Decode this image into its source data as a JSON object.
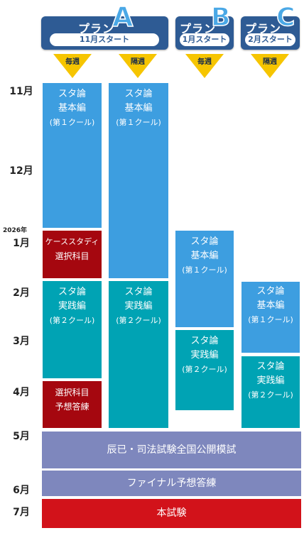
{
  "plans": [
    {
      "id": "A",
      "word": "プラン",
      "letter": "A",
      "start": "11月スタート",
      "tracks": [
        "毎週",
        "隔週"
      ]
    },
    {
      "id": "B",
      "word": "プラン",
      "letter": "B",
      "start": "1月スタート",
      "tracks": [
        "毎週"
      ]
    },
    {
      "id": "C",
      "word": "プラン",
      "letter": "C",
      "start": "2月スタート",
      "tracks": [
        "隔週"
      ]
    }
  ],
  "timeline": {
    "year_label": "2026年",
    "months": [
      "11月",
      "12月",
      "1月",
      "2月",
      "3月",
      "4月",
      "5月",
      "6月",
      "7月"
    ]
  },
  "blocks": {
    "a_weekly_basic": {
      "line1": "スタ論",
      "line2": "基本編",
      "line3": "(第１クール)"
    },
    "a_weekly_case": {
      "line1": "ケーススタディ",
      "line2": "選択科目"
    },
    "a_weekly_practice": {
      "line1": "スタ論",
      "line2": "実践編",
      "line3": "(第２クール)"
    },
    "a_weekly_elective": {
      "line1": "選択科目",
      "line2": "予想答練"
    },
    "a_biweekly_basic": {
      "line1": "スタ論",
      "line2": "基本編",
      "line3": "(第１クール)"
    },
    "a_biweekly_practice": {
      "line1": "スタ論",
      "line2": "実践編",
      "line3": "(第２クール)"
    },
    "b_basic": {
      "line1": "スタ論",
      "line2": "基本編",
      "line3": "(第１クール)"
    },
    "b_practice": {
      "line1": "スタ論",
      "line2": "実践編",
      "line3": "(第２クール)"
    },
    "c_basic": {
      "line1": "スタ論",
      "line2": "基本編",
      "line3": "(第１クール)"
    },
    "c_practice": {
      "line1": "スタ論",
      "line2": "実践編",
      "line3": "(第２クール)"
    }
  },
  "shared": {
    "mock_exam": "辰已・司法試験全国公開模試",
    "final_drill": "ファイナル予想答練",
    "main_exam": "本試験"
  },
  "colors": {
    "plan_header": "#2e5b94",
    "basic": "#3d9ee0",
    "practice": "#00a3b4",
    "elective": "#a5070f",
    "shared_band": "#7e87bd",
    "main_exam": "#d2121a",
    "frequency_arrow": "#f6c500"
  }
}
